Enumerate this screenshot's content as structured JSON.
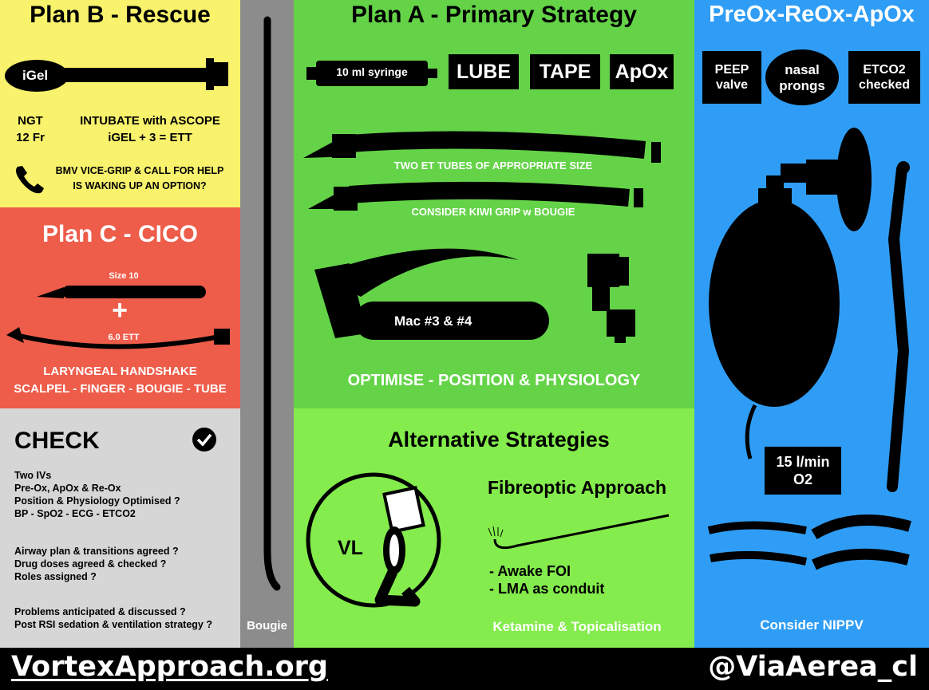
{
  "colors": {
    "yellow": "#f8f26c",
    "red": "#ee5c4a",
    "grey_light": "#d6d6d6",
    "grey_mid": "#8c8c8c",
    "green": "#64d348",
    "green_light": "#84ec4c",
    "blue": "#2f9df5",
    "black": "#000000"
  },
  "plan_b": {
    "title": "Plan B - Rescue",
    "igel": "iGel",
    "ngt": "NGT",
    "ngt_size": "12 Fr",
    "intubate_line1": "INTUBATE with ASCOPE",
    "intubate_line2": "iGEL + 3 = ETT",
    "call_line1": "BMV VICE-GRIP & CALL FOR HELP",
    "call_line2": "IS WAKING UP AN OPTION?",
    "phone_icon": "phone-icon"
  },
  "plan_c": {
    "title": "Plan C - CICO",
    "scalpel_size": "Size 10",
    "plus": "+",
    "ett_size": "6.0 ETT",
    "line1": "LARYNGEAL HANDSHAKE",
    "line2": "SCALPEL - FINGER - BOUGIE - TUBE"
  },
  "check": {
    "title": "CHECK",
    "icon": "check-circle-icon",
    "group1": [
      "Two IVs",
      "Pre-Ox, ApOx & Re-Ox",
      "Position & Physiology Optimised ?",
      "BP - SpO2 - ECG - ETCO2"
    ],
    "group2": [
      "Airway plan & transitions agreed ?",
      "Drug doses agreed & checked ?",
      "Roles assigned ?"
    ],
    "group3": [
      "Problems anticipated & discussed ?",
      "Post RSI sedation & ventilation strategy ?"
    ]
  },
  "bougie": {
    "label": "Bougie"
  },
  "plan_a": {
    "title": "Plan A - Primary Strategy",
    "syringe": "10 ml syringe",
    "lube": "LUBE",
    "tape": "TAPE",
    "apox": "ApOx",
    "tubes": "TWO ET TUBES OF APPROPRIATE SIZE",
    "kiwi": "CONSIDER KIWI GRIP w BOUGIE",
    "mac": "Mac #3 & #4",
    "optimise": "OPTIMISE - POSITION & PHYSIOLOGY"
  },
  "alternative": {
    "title": "Alternative Strategies",
    "vl": "VL",
    "fibreoptic": "Fibreoptic Approach",
    "foi": "- Awake FOI",
    "lma": "- LMA as conduit",
    "ketamine": "Ketamine & Topicalisation"
  },
  "preox": {
    "title": "PreOx-ReOx-ApOx",
    "peep_line1": "PEEP",
    "peep_line2": "valve",
    "nasal_line1": "nasal",
    "nasal_line2": "prongs",
    "etco2_line1": "ETCO2",
    "etco2_line2": "checked",
    "flow_line1": "15 l/min",
    "flow_line2": "O2",
    "nippv": "Consider NIPPV"
  },
  "footer": {
    "left": "VortexApproach.org",
    "right": "@ViaAerea_cl"
  }
}
